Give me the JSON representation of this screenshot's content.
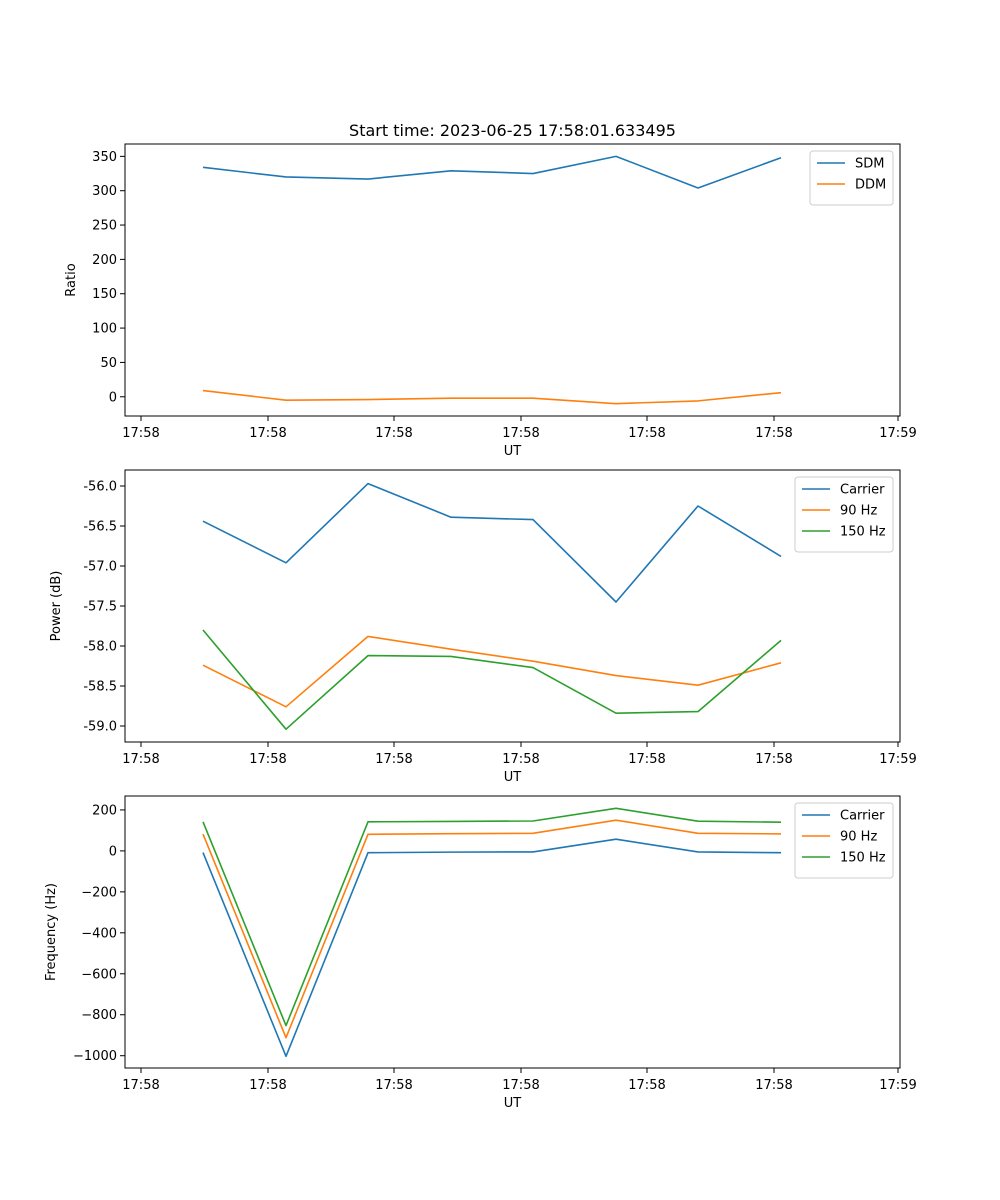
{
  "figure": {
    "title": "Start time: 2023-06-25 17:58:01.633495"
  },
  "colors": {
    "blue": "#1f77b4",
    "orange": "#ff7f0e",
    "green": "#2ca02c"
  },
  "chart_data": [
    {
      "type": "line",
      "title": "Start time: 2023-06-25 17:58:01.633495",
      "xlabel": "UT",
      "ylabel": "Ratio",
      "x_tick_labels": [
        "17:58",
        "17:58",
        "17:58",
        "17:58",
        "17:58",
        "17:58",
        "17:59"
      ],
      "yticks": [
        0,
        50,
        100,
        150,
        200,
        250,
        300,
        350
      ],
      "ylim": [
        -28,
        368
      ],
      "legend_position": "top-right",
      "series": [
        {
          "name": "SDM",
          "color": "#1f77b4",
          "values": [
            334,
            320,
            317,
            329,
            325,
            350,
            304,
            348
          ]
        },
        {
          "name": "DDM",
          "color": "#ff7f0e",
          "values": [
            9,
            -5,
            -4,
            -2,
            -2,
            -10,
            -6,
            6
          ]
        }
      ]
    },
    {
      "type": "line",
      "title": "",
      "xlabel": "UT",
      "ylabel": "Power (dB)",
      "x_tick_labels": [
        "17:58",
        "17:58",
        "17:58",
        "17:58",
        "17:58",
        "17:58",
        "17:59"
      ],
      "yticks": [
        -56.0,
        -56.5,
        -57.0,
        -57.5,
        -58.0,
        -58.5,
        -59.0
      ],
      "ylim": [
        -59.2,
        -55.8
      ],
      "legend_position": "top-right",
      "series": [
        {
          "name": "Carrier",
          "color": "#1f77b4",
          "values": [
            -56.44,
            -56.96,
            -55.97,
            -56.39,
            -56.42,
            -57.45,
            -56.25,
            -56.88
          ]
        },
        {
          "name": "90 Hz",
          "color": "#ff7f0e",
          "values": [
            -58.24,
            -58.76,
            -57.88,
            -58.04,
            -58.19,
            -58.37,
            -58.49,
            -58.21
          ]
        },
        {
          "name": "150 Hz",
          "color": "#2ca02c",
          "values": [
            -57.8,
            -59.04,
            -58.12,
            -58.13,
            -58.27,
            -58.84,
            -58.82,
            -57.93
          ]
        }
      ]
    },
    {
      "type": "line",
      "title": "",
      "xlabel": "UT",
      "ylabel": "Frequency (Hz)",
      "x_tick_labels": [
        "17:58",
        "17:58",
        "17:58",
        "17:58",
        "17:58",
        "17:58",
        "17:59"
      ],
      "yticks": [
        200,
        0,
        -200,
        -400,
        -600,
        -800,
        -1000
      ],
      "yticklabels": [
        "200",
        "0",
        "−200",
        "−400",
        "−600",
        "−800",
        "−1000"
      ],
      "ylim": [
        -1060,
        268
      ],
      "legend_position": "top-right",
      "series": [
        {
          "name": "Carrier",
          "color": "#1f77b4",
          "values": [
            -8,
            -1003,
            -9,
            -6,
            -5,
            57,
            -5,
            -9
          ]
        },
        {
          "name": "90 Hz",
          "color": "#ff7f0e",
          "values": [
            82,
            -912,
            81,
            84,
            86,
            150,
            86,
            83
          ]
        },
        {
          "name": "150 Hz",
          "color": "#2ca02c",
          "values": [
            142,
            -853,
            142,
            144,
            146,
            208,
            145,
            140
          ]
        }
      ]
    }
  ]
}
